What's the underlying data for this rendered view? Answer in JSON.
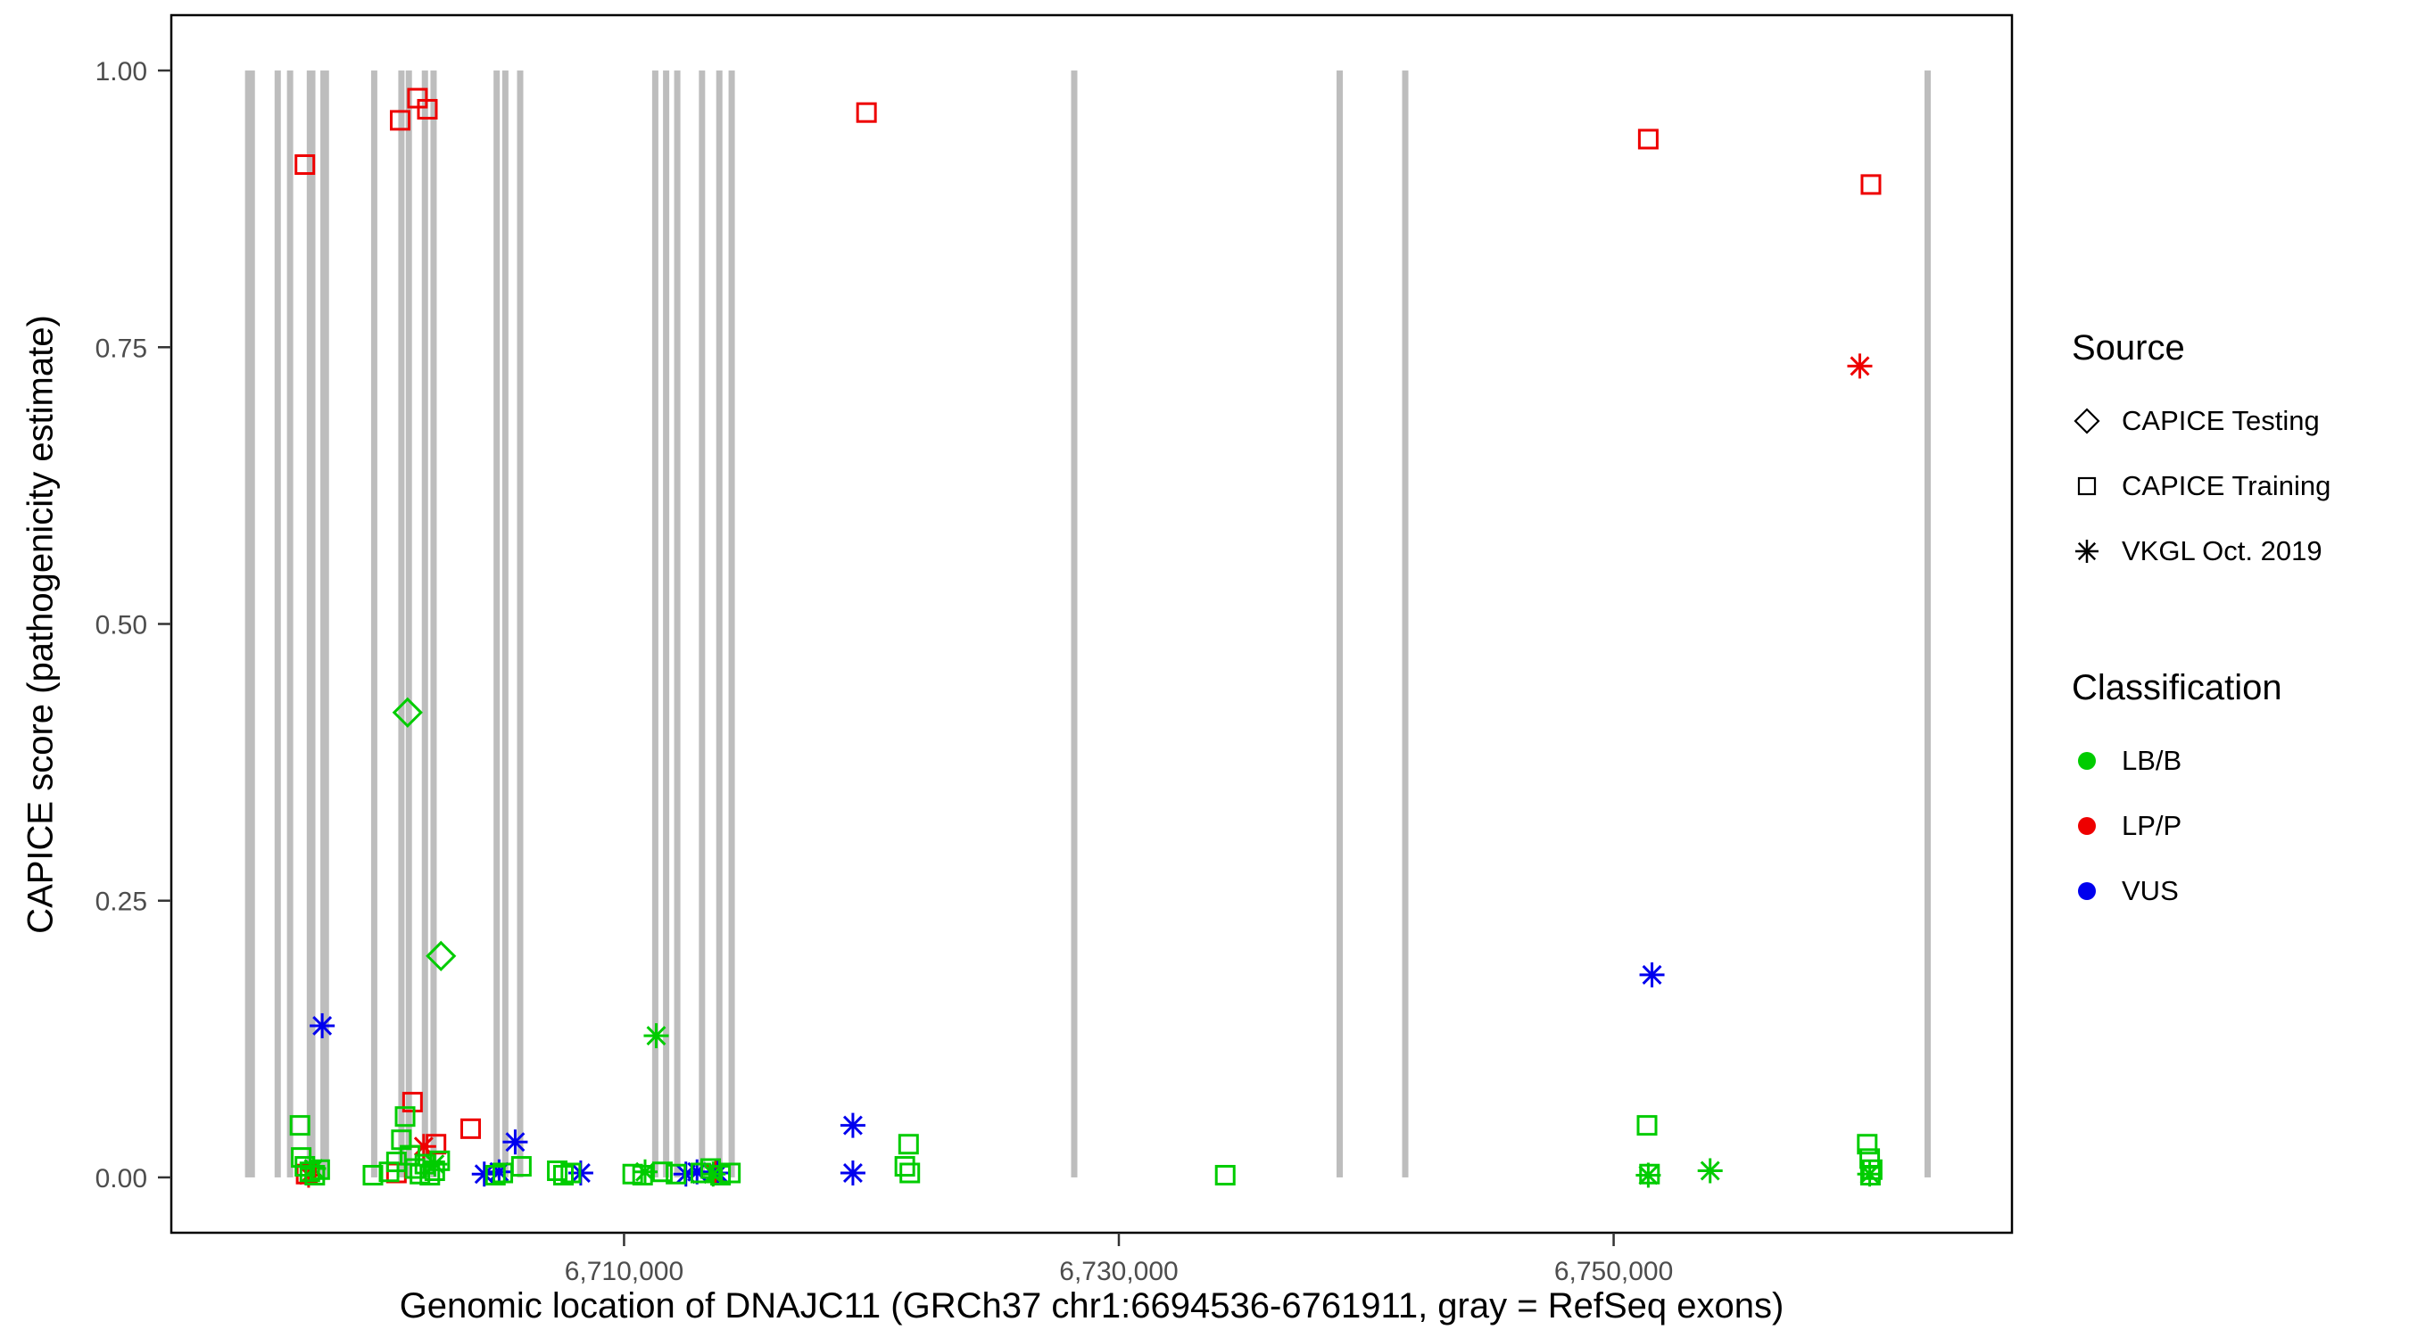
{
  "axes": {
    "x_label": "Genomic location of DNAJC11 (GRCh37 chr1:6694536-6761911, gray = RefSeq exons)",
    "y_label": "CAPICE score (pathogenicity estimate)"
  },
  "legend_source": {
    "title": "Source",
    "items": [
      {
        "label": "CAPICE Testing",
        "shape": "diamond"
      },
      {
        "label": "CAPICE Training",
        "shape": "square"
      },
      {
        "label": "VKGL Oct. 2019",
        "shape": "asterisk"
      }
    ]
  },
  "legend_classification": {
    "title": "Classification",
    "items": [
      {
        "label": "LB/B",
        "color": "#00cc00"
      },
      {
        "label": "LP/P",
        "color": "#ee0000"
      },
      {
        "label": "VUS",
        "color": "#0000ee"
      }
    ]
  },
  "chart_data": {
    "type": "scatter",
    "title": "",
    "xlabel": "Genomic location of DNAJC11 (GRCh37 chr1:6694536-6761911, gray = RefSeq exons)",
    "ylabel": "CAPICE score (pathogenicity estimate)",
    "x_domain": [
      6691700,
      6766100
    ],
    "y_domain": [
      -0.05,
      1.05
    ],
    "x_ticks": [
      {
        "value": 6710000,
        "label": "6,710,000"
      },
      {
        "value": 6730000,
        "label": "6,730,000"
      },
      {
        "value": 6750000,
        "label": "6,750,000"
      }
    ],
    "y_ticks": [
      {
        "value": 0.0,
        "label": "0.00"
      },
      {
        "value": 0.25,
        "label": "0.25"
      },
      {
        "value": 0.5,
        "label": "0.50"
      },
      {
        "value": 0.75,
        "label": "0.75"
      },
      {
        "value": 1.0,
        "label": "1.00"
      }
    ],
    "grid": false,
    "legend_position": "right",
    "exon_color": "#bdbdbd",
    "classification_colors": {
      "LB/B": "#00cc00",
      "LP/P": "#ee0000",
      "VUS": "#0000ee"
    },
    "source_shapes": {
      "CAPICE Testing": "diamond",
      "CAPICE Training": "square",
      "VKGL Oct. 2019": "asterisk"
    },
    "exons": [
      [
        6694680,
        6695080
      ],
      [
        6695875,
        6696125
      ],
      [
        6696375,
        6696625
      ],
      [
        6697175,
        6697525
      ],
      [
        6697725,
        6698075
      ],
      [
        6699775,
        6700025
      ],
      [
        6700875,
        6701125
      ],
      [
        6701175,
        6701425
      ],
      [
        6701825,
        6702075
      ],
      [
        6702175,
        6702425
      ],
      [
        6704725,
        6704975
      ],
      [
        6705075,
        6705325
      ],
      [
        6705675,
        6705925
      ],
      [
        6711135,
        6711385
      ],
      [
        6711575,
        6711825
      ],
      [
        6712025,
        6712275
      ],
      [
        6713025,
        6713275
      ],
      [
        6713725,
        6713975
      ],
      [
        6714225,
        6714475
      ],
      [
        6728070,
        6728270
      ],
      [
        6738800,
        6739000
      ],
      [
        6741450,
        6741650
      ],
      [
        6762565,
        6762815
      ]
    ],
    "points": [
      {
        "pos": 6697100,
        "score": 0.915,
        "source": "CAPICE Training",
        "classification": "LP/P"
      },
      {
        "pos": 6700950,
        "score": 0.955,
        "source": "CAPICE Training",
        "classification": "LP/P"
      },
      {
        "pos": 6701650,
        "score": 0.975,
        "source": "CAPICE Training",
        "classification": "LP/P"
      },
      {
        "pos": 6702050,
        "score": 0.965,
        "source": "CAPICE Training",
        "classification": "LP/P"
      },
      {
        "pos": 6719800,
        "score": 0.962,
        "source": "CAPICE Training",
        "classification": "LP/P"
      },
      {
        "pos": 6751400,
        "score": 0.938,
        "source": "CAPICE Training",
        "classification": "LP/P"
      },
      {
        "pos": 6760400,
        "score": 0.897,
        "source": "CAPICE Training",
        "classification": "LP/P"
      },
      {
        "pos": 6759950,
        "score": 0.733,
        "source": "VKGL Oct. 2019",
        "classification": "LP/P"
      },
      {
        "pos": 6697250,
        "score": 0.002,
        "source": "VKGL Oct. 2019",
        "classification": "LP/P"
      },
      {
        "pos": 6701900,
        "score": 0.028,
        "source": "VKGL Oct. 2019",
        "classification": "LP/P"
      },
      {
        "pos": 6713700,
        "score": 0.004,
        "source": "VKGL Oct. 2019",
        "classification": "LP/P"
      },
      {
        "pos": 6701250,
        "score": 0.42,
        "source": "CAPICE Testing",
        "classification": "LB/B"
      },
      {
        "pos": 6702600,
        "score": 0.2,
        "source": "CAPICE Testing",
        "classification": "LB/B"
      },
      {
        "pos": 6697800,
        "score": 0.137,
        "source": "VKGL Oct. 2019",
        "classification": "VUS"
      },
      {
        "pos": 6751550,
        "score": 0.183,
        "source": "VKGL Oct. 2019",
        "classification": "VUS"
      },
      {
        "pos": 6705600,
        "score": 0.032,
        "source": "VKGL Oct. 2019",
        "classification": "VUS"
      },
      {
        "pos": 6719250,
        "score": 0.047,
        "source": "VKGL Oct. 2019",
        "classification": "VUS"
      },
      {
        "pos": 6719250,
        "score": 0.004,
        "source": "VKGL Oct. 2019",
        "classification": "VUS"
      },
      {
        "pos": 6704350,
        "score": 0.003,
        "source": "VKGL Oct. 2019",
        "classification": "VUS"
      },
      {
        "pos": 6704950,
        "score": 0.005,
        "source": "VKGL Oct. 2019",
        "classification": "VUS"
      },
      {
        "pos": 6708250,
        "score": 0.004,
        "source": "VKGL Oct. 2019",
        "classification": "VUS"
      },
      {
        "pos": 6712500,
        "score": 0.003,
        "source": "VKGL Oct. 2019",
        "classification": "VUS"
      },
      {
        "pos": 6712950,
        "score": 0.005,
        "source": "VKGL Oct. 2019",
        "classification": "VUS"
      },
      {
        "pos": 6713800,
        "score": 0.004,
        "source": "VKGL Oct. 2019",
        "classification": "VUS"
      },
      {
        "pos": 6711300,
        "score": 0.128,
        "source": "VKGL Oct. 2019",
        "classification": "LB/B"
      },
      {
        "pos": 6697450,
        "score": 0.008,
        "source": "VKGL Oct. 2019",
        "classification": "LB/B"
      },
      {
        "pos": 6702350,
        "score": 0.012,
        "source": "VKGL Oct. 2019",
        "classification": "LB/B"
      },
      {
        "pos": 6710850,
        "score": 0.005,
        "source": "VKGL Oct. 2019",
        "classification": "LB/B"
      },
      {
        "pos": 6713600,
        "score": 0.003,
        "source": "VKGL Oct. 2019",
        "classification": "LB/B"
      },
      {
        "pos": 6751400,
        "score": 0.002,
        "source": "VKGL Oct. 2019",
        "classification": "LB/B"
      },
      {
        "pos": 6753900,
        "score": 0.006,
        "source": "VKGL Oct. 2019",
        "classification": "LB/B"
      },
      {
        "pos": 6760350,
        "score": 0.003,
        "source": "VKGL Oct. 2019",
        "classification": "LB/B"
      },
      {
        "pos": 6701450,
        "score": 0.068,
        "source": "CAPICE Training",
        "classification": "LP/P"
      },
      {
        "pos": 6703800,
        "score": 0.044,
        "source": "CAPICE Training",
        "classification": "LP/P"
      },
      {
        "pos": 6702400,
        "score": 0.03,
        "source": "CAPICE Training",
        "classification": "LP/P"
      },
      {
        "pos": 6697150,
        "score": 0.003,
        "source": "CAPICE Training",
        "classification": "LP/P"
      },
      {
        "pos": 6700800,
        "score": 0.004,
        "source": "CAPICE Training",
        "classification": "LP/P"
      },
      {
        "pos": 6696900,
        "score": 0.047,
        "source": "CAPICE Training",
        "classification": "LB/B"
      },
      {
        "pos": 6696950,
        "score": 0.018,
        "source": "CAPICE Training",
        "classification": "LB/B"
      },
      {
        "pos": 6697100,
        "score": 0.01,
        "source": "CAPICE Training",
        "classification": "LB/B"
      },
      {
        "pos": 6697300,
        "score": 0.005,
        "source": "CAPICE Training",
        "classification": "LB/B"
      },
      {
        "pos": 6697500,
        "score": 0.002,
        "source": "CAPICE Training",
        "classification": "LB/B"
      },
      {
        "pos": 6697700,
        "score": 0.007,
        "source": "CAPICE Training",
        "classification": "LB/B"
      },
      {
        "pos": 6699850,
        "score": 0.002,
        "source": "CAPICE Training",
        "classification": "LB/B"
      },
      {
        "pos": 6700500,
        "score": 0.005,
        "source": "CAPICE Training",
        "classification": "LB/B"
      },
      {
        "pos": 6700800,
        "score": 0.014,
        "source": "CAPICE Training",
        "classification": "LB/B"
      },
      {
        "pos": 6701000,
        "score": 0.034,
        "source": "CAPICE Training",
        "classification": "LB/B"
      },
      {
        "pos": 6701150,
        "score": 0.055,
        "source": "CAPICE Training",
        "classification": "LB/B"
      },
      {
        "pos": 6701350,
        "score": 0.02,
        "source": "CAPICE Training",
        "classification": "LB/B"
      },
      {
        "pos": 6701550,
        "score": 0.008,
        "source": "CAPICE Training",
        "classification": "LB/B"
      },
      {
        "pos": 6701750,
        "score": 0.003,
        "source": "CAPICE Training",
        "classification": "LB/B"
      },
      {
        "pos": 6701950,
        "score": 0.012,
        "source": "CAPICE Training",
        "classification": "LB/B"
      },
      {
        "pos": 6702150,
        "score": 0.002,
        "source": "CAPICE Training",
        "classification": "LB/B"
      },
      {
        "pos": 6702350,
        "score": 0.006,
        "source": "CAPICE Training",
        "classification": "LB/B"
      },
      {
        "pos": 6702550,
        "score": 0.015,
        "source": "CAPICE Training",
        "classification": "LB/B"
      },
      {
        "pos": 6704800,
        "score": 0.002,
        "source": "CAPICE Training",
        "classification": "LB/B"
      },
      {
        "pos": 6705100,
        "score": 0.004,
        "source": "CAPICE Training",
        "classification": "LB/B"
      },
      {
        "pos": 6705850,
        "score": 0.01,
        "source": "CAPICE Training",
        "classification": "LB/B"
      },
      {
        "pos": 6707300,
        "score": 0.006,
        "source": "CAPICE Training",
        "classification": "LB/B"
      },
      {
        "pos": 6707550,
        "score": 0.002,
        "source": "CAPICE Training",
        "classification": "LB/B"
      },
      {
        "pos": 6707850,
        "score": 0.004,
        "source": "CAPICE Training",
        "classification": "LB/B"
      },
      {
        "pos": 6710350,
        "score": 0.003,
        "source": "CAPICE Training",
        "classification": "LB/B"
      },
      {
        "pos": 6710750,
        "score": 0.002,
        "source": "CAPICE Training",
        "classification": "LB/B"
      },
      {
        "pos": 6711550,
        "score": 0.005,
        "source": "CAPICE Training",
        "classification": "LB/B"
      },
      {
        "pos": 6712100,
        "score": 0.003,
        "source": "CAPICE Training",
        "classification": "LB/B"
      },
      {
        "pos": 6713100,
        "score": 0.004,
        "source": "CAPICE Training",
        "classification": "LB/B"
      },
      {
        "pos": 6713500,
        "score": 0.008,
        "source": "CAPICE Training",
        "classification": "LB/B"
      },
      {
        "pos": 6713900,
        "score": 0.002,
        "source": "CAPICE Training",
        "classification": "LB/B"
      },
      {
        "pos": 6714300,
        "score": 0.004,
        "source": "CAPICE Training",
        "classification": "LB/B"
      },
      {
        "pos": 6721350,
        "score": 0.01,
        "source": "CAPICE Training",
        "classification": "LB/B"
      },
      {
        "pos": 6721500,
        "score": 0.03,
        "source": "CAPICE Training",
        "classification": "LB/B"
      },
      {
        "pos": 6721550,
        "score": 0.004,
        "source": "CAPICE Training",
        "classification": "LB/B"
      },
      {
        "pos": 6734300,
        "score": 0.002,
        "source": "CAPICE Training",
        "classification": "LB/B"
      },
      {
        "pos": 6751350,
        "score": 0.047,
        "source": "CAPICE Training",
        "classification": "LB/B"
      },
      {
        "pos": 6751450,
        "score": 0.003,
        "source": "CAPICE Training",
        "classification": "LB/B"
      },
      {
        "pos": 6760250,
        "score": 0.03,
        "source": "CAPICE Training",
        "classification": "LB/B"
      },
      {
        "pos": 6760350,
        "score": 0.017,
        "source": "CAPICE Training",
        "classification": "LB/B"
      },
      {
        "pos": 6760450,
        "score": 0.007,
        "source": "CAPICE Training",
        "classification": "LB/B"
      },
      {
        "pos": 6760380,
        "score": 0.002,
        "source": "CAPICE Training",
        "classification": "LB/B"
      }
    ]
  }
}
